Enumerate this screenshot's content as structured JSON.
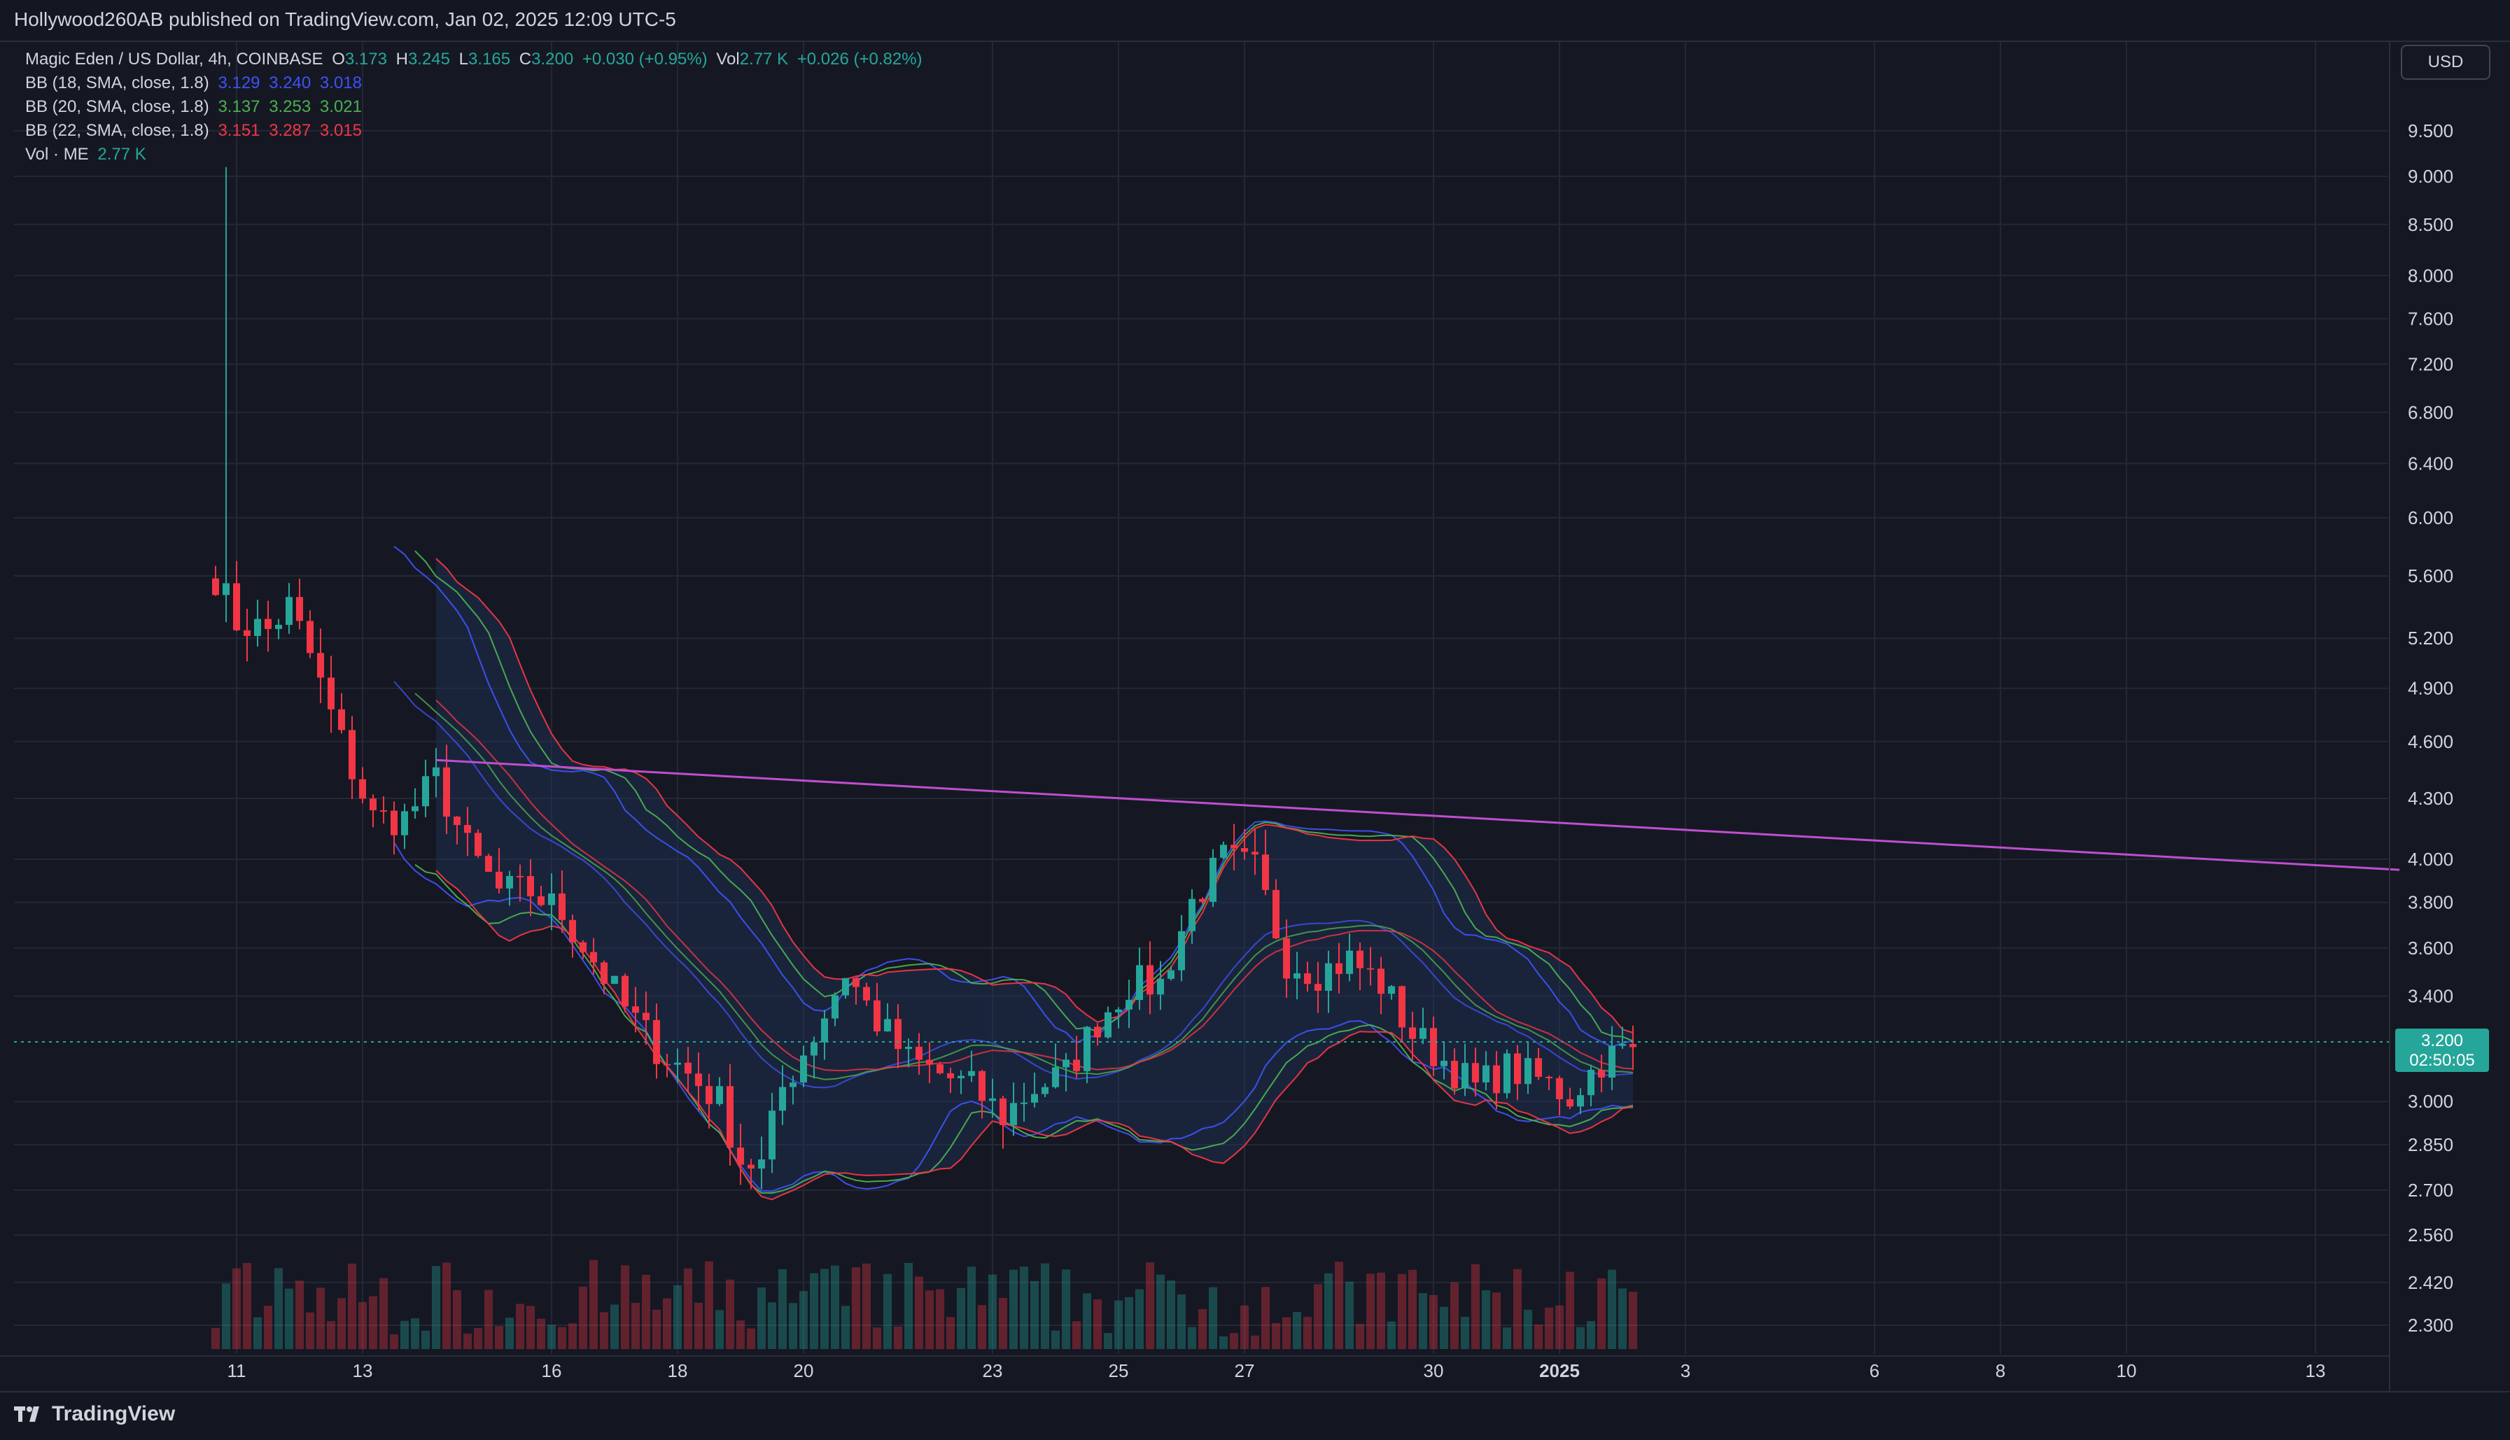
{
  "header": {
    "publish_line": "Hollywood260AB published on TradingView.com, Jan 02, 2025 12:09 UTC-5"
  },
  "footer": {
    "logo_text": "TradingView"
  },
  "legend": {
    "symbol": "Magic Eden / US Dollar, 4h, COINBASE",
    "o_label": "O",
    "o_value": "3.173",
    "h_label": "H",
    "h_value": "3.245",
    "l_label": "L",
    "l_value": "3.165",
    "c_label": "C",
    "c_value": "3.200",
    "change": "+0.030 (+0.95%)",
    "vol_label": "Vol",
    "vol_value": "2.77 K",
    "vol_change": "+0.026 (+0.82%)",
    "bb1_label": "BB (18, SMA, close, 1.8)",
    "bb1_values": [
      "3.129",
      "3.240",
      "3.018"
    ],
    "bb2_label": "BB (20, SMA, close, 1.8)",
    "bb2_values": [
      "3.137",
      "3.253",
      "3.021"
    ],
    "bb3_label": "BB (22, SMA, close, 1.8)",
    "bb3_values": [
      "3.151",
      "3.287",
      "3.015"
    ],
    "volume_label": "Vol · ME",
    "volume_value": "2.77 K"
  },
  "currency_button": "USD",
  "last_price_tag": {
    "price": "3.200",
    "countdown": "02:50:05"
  },
  "colors": {
    "background": "#151823",
    "grid": "#242836",
    "up": "#26a69a",
    "down": "#f23645",
    "bb18": "#3f51f5",
    "bb20": "#4caf50",
    "bb22": "#f23645",
    "trendline": "#c04ecf",
    "band_fill": "#1e3358"
  },
  "chart_data": {
    "type": "candlestick",
    "scale": "log",
    "y_ticks": [
      "9.500",
      "9.000",
      "8.500",
      "8.000",
      "7.600",
      "7.200",
      "6.800",
      "6.400",
      "6.000",
      "5.600",
      "5.200",
      "4.900",
      "4.600",
      "4.300",
      "4.000",
      "3.800",
      "3.600",
      "3.400",
      "3.000",
      "2.850",
      "2.700",
      "2.560",
      "2.420",
      "2.300"
    ],
    "x_ticks": [
      "11",
      "13",
      "16",
      "18",
      "20",
      "23",
      "25",
      "27",
      "30",
      "2025",
      "3",
      "6",
      "8",
      "10",
      "13"
    ],
    "x_tick_dates": [
      "2024-12-11",
      "2024-12-13",
      "2024-12-16",
      "2024-12-18",
      "2024-12-20",
      "2024-12-23",
      "2024-12-25",
      "2024-12-27",
      "2024-12-30",
      "2025-01-01",
      "2025-01-03",
      "2025-01-06",
      "2025-01-08",
      "2025-01-10",
      "2025-01-13"
    ],
    "last_price": 3.2,
    "trendline": [
      {
        "date": "2024-12-14T04:00",
        "price": 4.5
      },
      {
        "date": "2025-01-14T08:00",
        "price": 3.95
      }
    ],
    "close_path": [
      {
        "date": "2024-12-10T16:00",
        "price": 5.6
      },
      {
        "date": "2024-12-11T00:00",
        "price": 5.3
      },
      {
        "date": "2024-12-11T12:00",
        "price": 5.25
      },
      {
        "date": "2024-12-11T20:00",
        "price": 5.4
      },
      {
        "date": "2024-12-12T04:00",
        "price": 5.1
      },
      {
        "date": "2024-12-12T12:00",
        "price": 4.75
      },
      {
        "date": "2024-12-12T20:00",
        "price": 4.45
      },
      {
        "date": "2024-12-13T04:00",
        "price": 4.2
      },
      {
        "date": "2024-12-13T16:00",
        "price": 4.2
      },
      {
        "date": "2024-12-14T04:00",
        "price": 4.4
      },
      {
        "date": "2024-12-14T16:00",
        "price": 4.05
      },
      {
        "date": "2024-12-15T04:00",
        "price": 3.85
      },
      {
        "date": "2024-12-15T16:00",
        "price": 3.85
      },
      {
        "date": "2024-12-16T04:00",
        "price": 3.75
      },
      {
        "date": "2024-12-16T16:00",
        "price": 3.55
      },
      {
        "date": "2024-12-17T04:00",
        "price": 3.35
      },
      {
        "date": "2024-12-17T16:00",
        "price": 3.2
      },
      {
        "date": "2024-12-18T04:00",
        "price": 3.1
      },
      {
        "date": "2024-12-18T16:00",
        "price": 3.0
      },
      {
        "date": "2024-12-19T00:00",
        "price": 2.8
      },
      {
        "date": "2024-12-19T08:00",
        "price": 2.78
      },
      {
        "date": "2024-12-19T16:00",
        "price": 3.05
      },
      {
        "date": "2024-12-20T04:00",
        "price": 3.25
      },
      {
        "date": "2024-12-20T16:00",
        "price": 3.5
      },
      {
        "date": "2024-12-21T04:00",
        "price": 3.3
      },
      {
        "date": "2024-12-21T16:00",
        "price": 3.15
      },
      {
        "date": "2024-12-22T04:00",
        "price": 3.1
      },
      {
        "date": "2024-12-22T16:00",
        "price": 3.05
      },
      {
        "date": "2024-12-23T04:00",
        "price": 2.95
      },
      {
        "date": "2024-12-23T16:00",
        "price": 3.05
      },
      {
        "date": "2024-12-24T04:00",
        "price": 3.1
      },
      {
        "date": "2024-12-24T16:00",
        "price": 3.3
      },
      {
        "date": "2024-12-25T04:00",
        "price": 3.45
      },
      {
        "date": "2024-12-25T16:00",
        "price": 3.45
      },
      {
        "date": "2024-12-26T04:00",
        "price": 3.8
      },
      {
        "date": "2024-12-26T16:00",
        "price": 4.0
      },
      {
        "date": "2024-12-27T04:00",
        "price": 3.95
      },
      {
        "date": "2024-12-27T16:00",
        "price": 3.55
      },
      {
        "date": "2024-12-28T04:00",
        "price": 3.5
      },
      {
        "date": "2024-12-28T16:00",
        "price": 3.55
      },
      {
        "date": "2024-12-29T04:00",
        "price": 3.45
      },
      {
        "date": "2024-12-29T16:00",
        "price": 3.25
      },
      {
        "date": "2024-12-30T04:00",
        "price": 3.15
      },
      {
        "date": "2024-12-30T16:00",
        "price": 3.05
      },
      {
        "date": "2024-12-31T04:00",
        "price": 3.12
      },
      {
        "date": "2024-12-31T16:00",
        "price": 3.08
      },
      {
        "date": "2025-01-01T04:00",
        "price": 3.02
      },
      {
        "date": "2025-01-01T16:00",
        "price": 3.15
      },
      {
        "date": "2025-01-02T04:00",
        "price": 3.2
      }
    ],
    "spike_high": {
      "date": "2024-12-10T20:00",
      "price": 9.1
    }
  }
}
